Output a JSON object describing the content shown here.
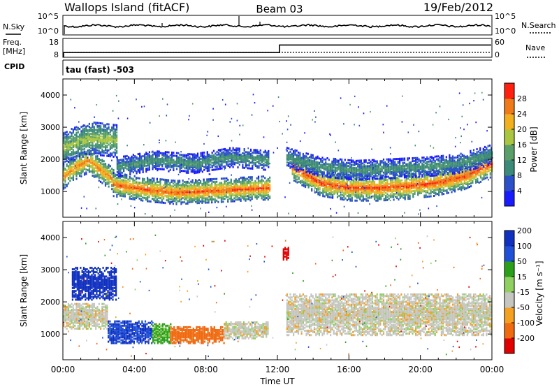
{
  "header": {
    "station": "Wallops Island (fitACF)",
    "beam": "Beam 03",
    "date": "19/Feb/2012"
  },
  "noise_panel": {
    "left_label": "N.Sky",
    "right_label": "N.Search",
    "ticks_left": [
      "10^5",
      "10^0"
    ],
    "ticks_right": [
      "10^5",
      "10^0"
    ]
  },
  "freq_panel": {
    "left_label_top": "Freq.",
    "left_label_bottom": "[MHz]",
    "ticks_left": [
      "18",
      "8"
    ],
    "right_label": "Nave",
    "ticks_right": [
      "60",
      "0"
    ],
    "freq_step": {
      "before_mhz": 10.5,
      "after_mhz": 14.5,
      "switch_hour": 12.0
    }
  },
  "cpid_label": "CPID",
  "cpid_text": "tau (fast) -503",
  "colors": {
    "power": [
      "#1a1aff",
      "#2b50c8",
      "#3c8a78",
      "#5a9f6a",
      "#aac640",
      "#f2b020",
      "#f07a18",
      "#ff2010"
    ],
    "velocity": [
      "#1030c0",
      "#2050d8",
      "#2aa01a",
      "#90d060",
      "#c6c6c0",
      "#f4a020",
      "#f06a10",
      "#e00000"
    ],
    "ground_scatter": "#c8c8c0"
  },
  "chart_data": [
    {
      "type": "heatmap",
      "panel": "power",
      "ylabel": "Slant Range [km]",
      "yticks": [
        "1000",
        "2000",
        "3000",
        "4000"
      ],
      "ylim": [
        200,
        4500
      ],
      "colorbar_label": "Power [dB]",
      "colorbar_ticks": [
        "4",
        "8",
        "12",
        "16",
        "20",
        "24",
        "28"
      ],
      "colorbar_range": [
        0,
        32
      ],
      "bands": [
        {
          "name": "main",
          "start_hour": 0.0,
          "end_hour": 2.8,
          "center_km": [
            1500,
            1800,
            2000,
            1700,
            1400
          ],
          "width_km": 380,
          "peak_db": 26
        },
        {
          "name": "main",
          "start_hour": 2.8,
          "end_hour": 11.6,
          "center_km": [
            1250,
            1100,
            1000,
            1050,
            1100,
            1150
          ],
          "width_km": 360,
          "peak_db": 28
        },
        {
          "name": "main",
          "start_hour": 12.8,
          "end_hour": 24.0,
          "center_km": [
            1800,
            1300,
            1150,
            1150,
            1200,
            1300,
            1500,
            1900
          ],
          "width_km": 400,
          "peak_db": 29
        },
        {
          "name": "upper",
          "start_hour": 0.0,
          "end_hour": 3.0,
          "center_km": [
            2400,
            2700,
            2600
          ],
          "width_km": 500,
          "peak_db": 18
        },
        {
          "name": "upper",
          "start_hour": 3.0,
          "end_hour": 11.5,
          "center_km": [
            1800,
            2000,
            1900,
            2100,
            2000
          ],
          "width_km": 300,
          "peak_db": 12
        },
        {
          "name": "upper",
          "start_hour": 12.5,
          "end_hour": 24.0,
          "center_km": [
            2100,
            1800,
            1700,
            1750,
            1800,
            1900,
            2200
          ],
          "width_km": 300,
          "peak_db": 12
        }
      ]
    },
    {
      "type": "heatmap",
      "panel": "velocity",
      "ylabel": "Slant Range [km]",
      "yticks": [
        "1000",
        "2000",
        "3000",
        "4000"
      ],
      "ylim": [
        200,
        4500
      ],
      "colorbar_label": "Velocity [m s⁻¹]",
      "colorbar_ticks": [
        "200",
        "100",
        "50",
        "15",
        "-15",
        "-50",
        "-100",
        "-200"
      ],
      "colorbar_range": [
        -250,
        250
      ],
      "xlabel": "Time UT",
      "xticks": [
        "00:00",
        "04:00",
        "08:00",
        "12:00",
        "16:00",
        "20:00",
        "00:00"
      ],
      "xlim": [
        0,
        24
      ],
      "regions": [
        {
          "start_hour": 0.5,
          "end_hour": 3.0,
          "center_km": 2600,
          "width_km": 500,
          "velocity": 200
        },
        {
          "start_hour": 2.5,
          "end_hour": 5.0,
          "center_km": 1100,
          "width_km": 350,
          "velocity": 150
        },
        {
          "start_hour": 5.0,
          "end_hour": 6.0,
          "center_km": 1050,
          "width_km": 300,
          "velocity": 40
        },
        {
          "start_hour": 6.0,
          "end_hour": 9.0,
          "center_km": 1000,
          "width_km": 250,
          "velocity": -70
        },
        {
          "start_hour": 9.0,
          "end_hour": 11.5,
          "center_km": 1150,
          "width_km": 250,
          "velocity": 0
        },
        {
          "start_hour": 0.0,
          "end_hour": 2.5,
          "center_km": 1600,
          "width_km": 400,
          "velocity": 0
        },
        {
          "start_hour": 12.5,
          "end_hour": 24.0,
          "center_km": 1650,
          "width_km": 650,
          "velocity": 0
        },
        {
          "start_hour": 12.3,
          "end_hour": 12.6,
          "center_km": 3550,
          "width_km": 200,
          "velocity": -220
        }
      ]
    }
  ]
}
